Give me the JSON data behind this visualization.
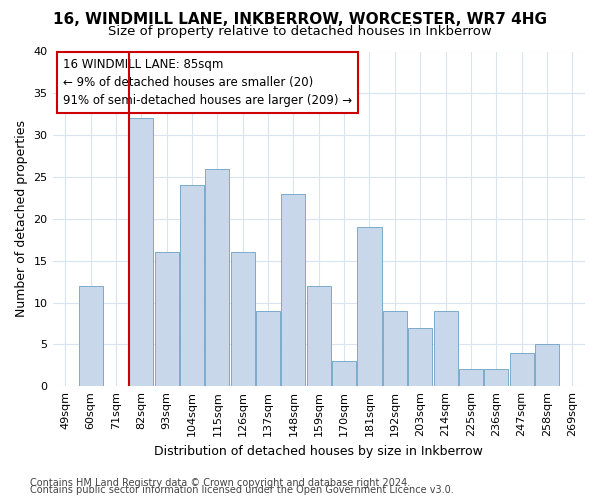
{
  "title": "16, WINDMILL LANE, INKBERROW, WORCESTER, WR7 4HG",
  "subtitle": "Size of property relative to detached houses in Inkberrow",
  "xlabel": "Distribution of detached houses by size in Inkberrow",
  "ylabel": "Number of detached properties",
  "categories": [
    "49sqm",
    "60sqm",
    "71sqm",
    "82sqm",
    "93sqm",
    "104sqm",
    "115sqm",
    "126sqm",
    "137sqm",
    "148sqm",
    "159sqm",
    "170sqm",
    "181sqm",
    "192sqm",
    "203sqm",
    "214sqm",
    "225sqm",
    "236sqm",
    "247sqm",
    "258sqm",
    "269sqm"
  ],
  "values": [
    0,
    12,
    0,
    32,
    16,
    24,
    26,
    16,
    9,
    23,
    12,
    3,
    19,
    9,
    7,
    9,
    2,
    2,
    4,
    5,
    0
  ],
  "bar_color": "#c8d8ea",
  "bar_edge_color": "#7aaacb",
  "highlight_line_index": 3,
  "highlight_color": "#cc0000",
  "annotation_lines": [
    "16 WINDMILL LANE: 85sqm",
    "← 9% of detached houses are smaller (20)",
    "91% of semi-detached houses are larger (209) →"
  ],
  "annotation_box_color": "#ffffff",
  "annotation_box_edge": "#cc0000",
  "ylim": [
    0,
    40
  ],
  "yticks": [
    0,
    5,
    10,
    15,
    20,
    25,
    30,
    35,
    40
  ],
  "footer_line1": "Contains HM Land Registry data © Crown copyright and database right 2024.",
  "footer_line2": "Contains public sector information licensed under the Open Government Licence v3.0.",
  "bg_color": "#ffffff",
  "plot_bg_color": "#ffffff",
  "grid_color": "#d8e4f0",
  "title_fontsize": 11,
  "subtitle_fontsize": 9.5,
  "axis_label_fontsize": 9,
  "tick_fontsize": 8,
  "annotation_fontsize": 8.5,
  "footer_fontsize": 7
}
